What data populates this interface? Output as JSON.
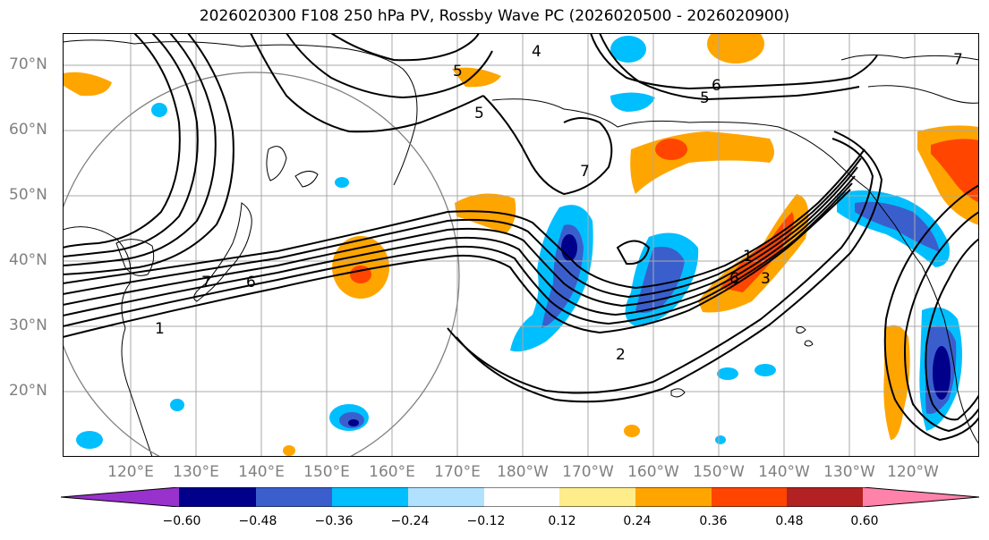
{
  "title": "2026020300 F108 250 hPa PV, Rossby Wave PC (2026020500 - 2026020900)",
  "lat_labels": [
    "70°N",
    "60°N",
    "50°N",
    "40°N",
    "30°N",
    "20°N"
  ],
  "lon_labels": [
    "120°E",
    "130°E",
    "140°E",
    "150°E",
    "160°E",
    "170°E",
    "180°W",
    "170°W",
    "160°W",
    "150°W",
    "140°W",
    "130°W",
    "120°W"
  ],
  "contour_labels": [
    "4",
    "5",
    "5",
    "6",
    "5",
    "7",
    "7",
    "6",
    "1",
    "2",
    "1",
    "3",
    "6",
    "7"
  ],
  "colorbar": {
    "tick_labels": [
      "−0.60",
      "−0.48",
      "−0.36",
      "−0.24",
      "−0.12",
      "0.12",
      "0.24",
      "0.36",
      "0.48",
      "0.60"
    ],
    "colors": [
      "#9932cc",
      "#00008b",
      "#3a5fcd",
      "#00bfff",
      "#b0e2ff",
      "#ffffff",
      "#ffec8b",
      "#ffa500",
      "#ff4500",
      "#b22222",
      "#ff82ab"
    ]
  },
  "colors": {
    "grid": "#a9a9a9",
    "contour": "#000000",
    "axis_label": "#808080"
  }
}
